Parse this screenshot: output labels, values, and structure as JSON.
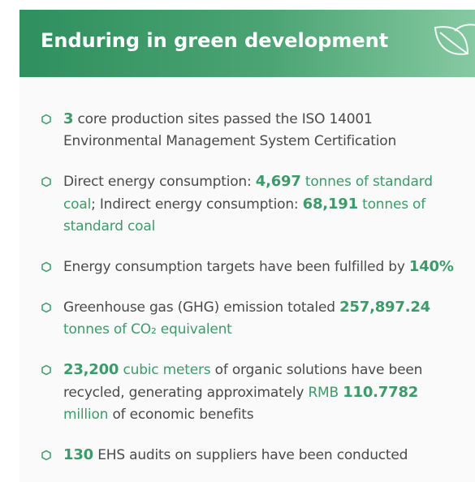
{
  "header": {
    "title": "Enduring in green development"
  },
  "items": [
    {
      "segments": [
        {
          "text": "3",
          "bold": true,
          "color": "#3d9a6a"
        },
        {
          "text": " core production sites passed the ISO 14001 Environmental Management System Certification"
        }
      ]
    },
    {
      "segments": [
        {
          "text": "Direct energy consumption: "
        },
        {
          "text": "4,697",
          "bold": true,
          "color": "#3d9a6a"
        },
        {
          "text": " tonnes of standard coal",
          "color": "#3d9a6a"
        },
        {
          "text": "; Indirect energy consumption: "
        },
        {
          "text": "68,191",
          "bold": true,
          "color": "#3d9a6a"
        },
        {
          "text": " tonnes of standard coal",
          "color": "#3d9a6a"
        }
      ]
    },
    {
      "segments": [
        {
          "text": "Energy consumption targets have been fulfilled by "
        },
        {
          "text": "140%",
          "bold": true,
          "color": "#3d9a6a"
        }
      ]
    },
    {
      "segments": [
        {
          "text": "Greenhouse gas (GHG) emission totaled "
        },
        {
          "text": "257,897.24",
          "bold": true,
          "color": "#3d9a6a"
        },
        {
          "text": " tonnes of CO₂ equivalent",
          "color": "#3d9a6a"
        }
      ]
    },
    {
      "segments": [
        {
          "text": "23,200",
          "bold": true,
          "color": "#3d9a6a"
        },
        {
          "text": " cubic meters",
          "color": "#3d9a6a"
        },
        {
          "text": " of organic solutions have been recycled, generating approximately "
        },
        {
          "text": "RMB ",
          "color": "#3d9a6a"
        },
        {
          "text": "110.7782",
          "bold": true,
          "color": "#3d9a6a"
        },
        {
          "text": " million",
          "color": "#3d9a6a"
        },
        {
          "text": " of economic benefits"
        }
      ]
    },
    {
      "segments": [
        {
          "text": "130",
          "bold": true,
          "color": "#3d9a6a"
        },
        {
          "text": " EHS audits on suppliers have been conducted"
        }
      ]
    }
  ]
}
